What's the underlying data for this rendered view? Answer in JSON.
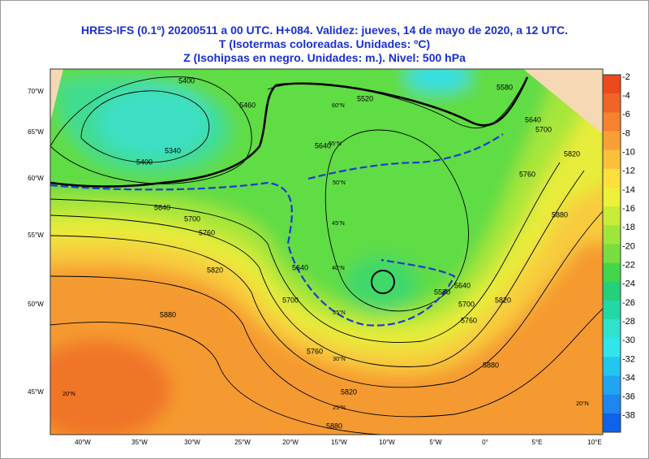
{
  "header": {
    "lines": [
      "HRES-IFS (0.1º) 20200511 a 00 UTC.  H+084. Validez: jueves, 14 de mayo de 2020,  a  12 UTC.",
      "T (Isotermas coloreadas. Unidades: ºC)",
      "Z (Isohipsas en negro. Unidades: m.).   Nivel: 500 hPa"
    ]
  },
  "colorbar": {
    "labels": [
      "-2",
      "-4",
      "-6",
      "-8",
      "-10",
      "-12",
      "-14",
      "-16",
      "-18",
      "-20",
      "-22",
      "-24",
      "-26",
      "-28",
      "-30",
      "-32",
      "-34",
      "-36",
      "-38"
    ],
    "colors": [
      "#ec4a1c",
      "#f06426",
      "#f4822e",
      "#f8a036",
      "#fbbf3c",
      "#fde03e",
      "#eef03a",
      "#c8ec38",
      "#a0e63a",
      "#78de40",
      "#44d64a",
      "#24d07a",
      "#22d8a6",
      "#2ee2cc",
      "#30e6ea",
      "#22c6f0",
      "#20a6f0",
      "#1e86ee",
      "#1062e8"
    ]
  },
  "map": {
    "latitude_labels": [
      "70°W",
      "65°W",
      "60°W",
      "55°W",
      "50°W",
      "45°W"
    ],
    "longitude_labels": [
      "40°W",
      "35°W",
      "30°W",
      "25°W",
      "20°W",
      "15°W",
      "10°W",
      "5°W",
      "0°",
      "5°E",
      "10°E"
    ],
    "contour_labels": [
      "5400",
      "5340",
      "5400",
      "5460",
      "5520",
      "5580",
      "5640",
      "5700",
      "5760",
      "5820",
      "5880",
      "5640",
      "5640",
      "5700",
      "5760",
      "5820",
      "5880",
      "5580",
      "5640",
      "5700",
      "5760",
      "5820",
      "5880",
      "5700",
      "5760",
      "5820",
      "5880",
      "5640"
    ],
    "grid_labels": [
      "60°N",
      "55°N",
      "50°N",
      "45°N",
      "40°N",
      "35°N",
      "30°N",
      "25°N",
      "20°N",
      "20°N"
    ]
  }
}
